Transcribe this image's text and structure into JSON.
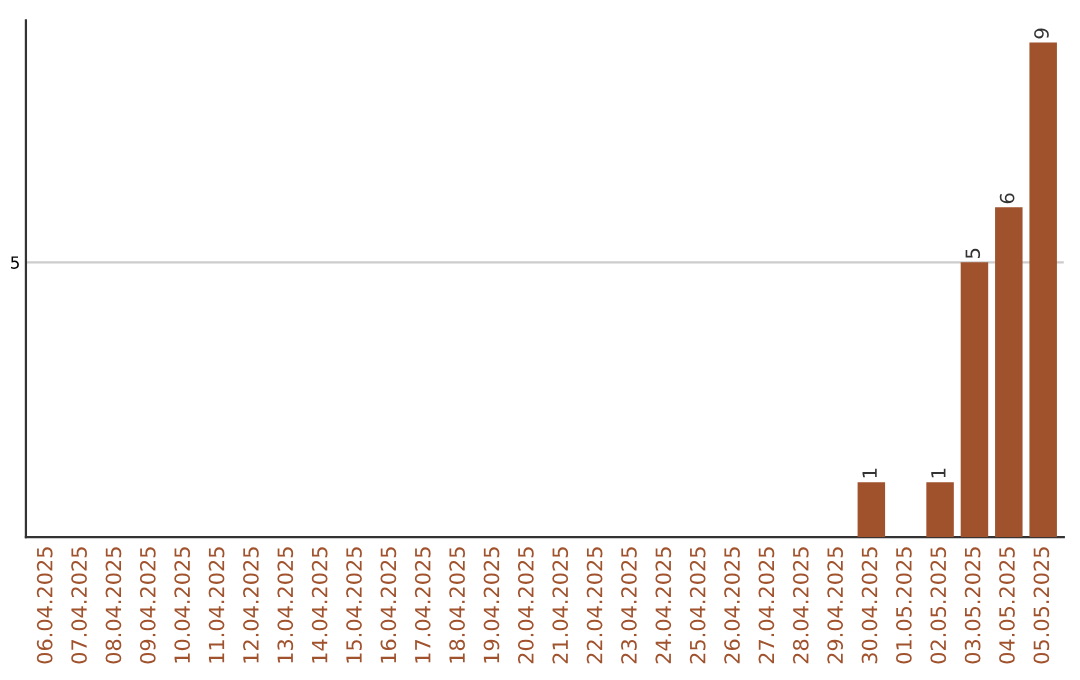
{
  "chart_data": {
    "type": "bar",
    "categories": [
      "06.04.2025",
      "07.04.2025",
      "08.04.2025",
      "09.04.2025",
      "10.04.2025",
      "11.04.2025",
      "12.04.2025",
      "13.04.2025",
      "14.04.2025",
      "15.04.2025",
      "16.04.2025",
      "17.04.2025",
      "18.04.2025",
      "19.04.2025",
      "20.04.2025",
      "21.04.2025",
      "22.04.2025",
      "23.04.2025",
      "24.04.2025",
      "25.04.2025",
      "26.04.2025",
      "27.04.2025",
      "28.04.2025",
      "29.04.2025",
      "30.04.2025",
      "01.05.2025",
      "02.05.2025",
      "03.05.2025",
      "04.05.2025",
      "05.05.2025"
    ],
    "values": [
      null,
      null,
      null,
      null,
      null,
      null,
      null,
      null,
      null,
      null,
      null,
      null,
      null,
      null,
      null,
      null,
      null,
      null,
      null,
      null,
      null,
      null,
      null,
      null,
      1,
      null,
      1,
      5,
      6,
      9
    ],
    "data_labels": true,
    "color": "#a0522d",
    "ylim": [
      0,
      9.4
    ],
    "yticks": [
      5
    ],
    "grid": "y"
  }
}
